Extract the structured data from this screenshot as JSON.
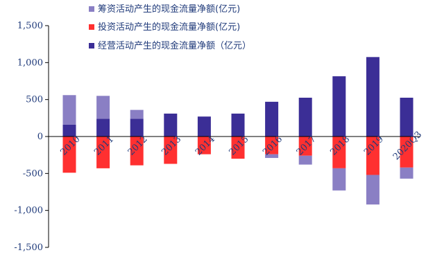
{
  "chart_data": {
    "type": "bar",
    "stacked": true,
    "categories": [
      "2010",
      "2011",
      "2012",
      "2013",
      "2014",
      "2015",
      "2016",
      "2017",
      "2018",
      "2019",
      "2020Q3"
    ],
    "series": [
      {
        "name": "筹资活动产生的现金流量净额(亿元)",
        "color": "#8a7fc4",
        "values": [
          400,
          310,
          120,
          0,
          0,
          0,
          -50,
          -120,
          -300,
          -400,
          -150
        ]
      },
      {
        "name": "投资活动产生的现金流量净额(亿元)",
        "color": "#ff3030",
        "values": [
          -490,
          -430,
          -390,
          -370,
          -240,
          -300,
          -240,
          -260,
          -430,
          -520,
          -420
        ]
      },
      {
        "name": "经营活动产生的现金流量净额（亿元）",
        "color": "#3b2e96",
        "values": [
          160,
          240,
          240,
          310,
          270,
          310,
          470,
          525,
          815,
          1075,
          525
        ]
      }
    ],
    "y_ticks": [
      "1,500",
      "1,000",
      "500",
      "0",
      "-500",
      "-1,000",
      "-1,500"
    ],
    "y_tick_values": [
      1500,
      1000,
      500,
      0,
      -500,
      -1000,
      -1500
    ],
    "ylim": [
      -1500,
      1500
    ],
    "title": "",
    "xlabel": "",
    "ylabel": "",
    "grid": false,
    "legend_position": "top-left"
  }
}
